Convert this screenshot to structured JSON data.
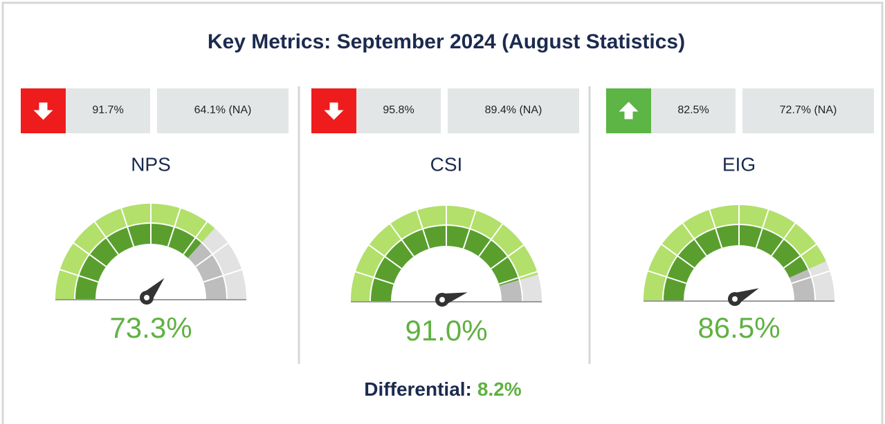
{
  "title": "Key Metrics: September 2024 (August Statistics)",
  "chart_data": [
    {
      "type": "gauge",
      "title": "NPS",
      "values": [
        73.3
      ],
      "value_labels": [
        "73.3%"
      ],
      "ylim": [
        0,
        100
      ],
      "trend": "down",
      "comparisons": [
        "91.7%",
        "64.1% (NA)"
      ]
    },
    {
      "type": "gauge",
      "title": "CSI",
      "values": [
        91.0
      ],
      "value_labels": [
        "91.0%"
      ],
      "ylim": [
        0,
        100
      ],
      "trend": "down",
      "comparisons": [
        "95.8%",
        "89.4% (NA)"
      ]
    },
    {
      "type": "gauge",
      "title": "EIG",
      "values": [
        86.5
      ],
      "value_labels": [
        "86.5%"
      ],
      "ylim": [
        0,
        100
      ],
      "trend": "up",
      "comparisons": [
        "82.5%",
        "72.7% (NA)"
      ]
    }
  ],
  "differential": {
    "label": "Differential:",
    "value": "8.2%"
  }
}
